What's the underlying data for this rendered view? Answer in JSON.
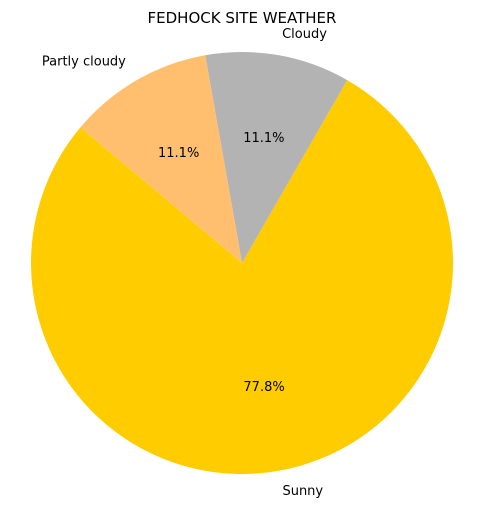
{
  "chart_data": {
    "type": "pie",
    "title": "FEDHOCK SITE WEATHER",
    "labels": [
      "Sunny",
      "Cloudy",
      "Partly cloudy"
    ],
    "values": [
      77.8,
      11.1,
      11.1
    ],
    "percent_labels": [
      "77.8%",
      "11.1%",
      "11.1%"
    ],
    "colors": [
      "#ffcc00",
      "#b3b3b3",
      "#ffbf6e"
    ],
    "start_angle_deg": 140,
    "direction": "counterclockwise"
  }
}
